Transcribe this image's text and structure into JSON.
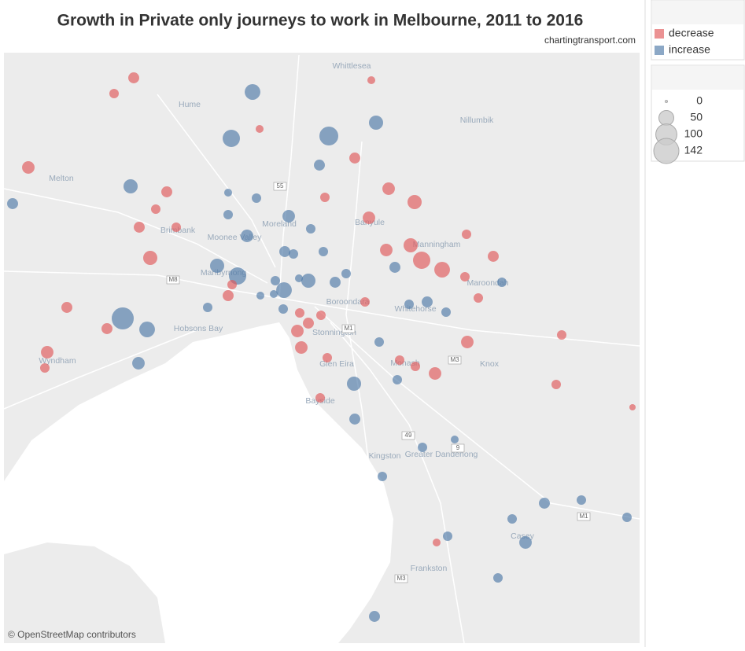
{
  "header": {
    "title": "Growth in Private only journeys to work in Melbourne, 2011 to 2016",
    "subtitle": "chartingtransport.com"
  },
  "legend": {
    "colors": [
      {
        "label": "decrease",
        "color": "#e15759"
      },
      {
        "label": "increase",
        "color": "#4e79a7"
      }
    ],
    "sizes": [
      0,
      50,
      100,
      142
    ]
  },
  "map": {
    "places": [
      "Whittlesea",
      "Hume",
      "Nillumbik",
      "Melton",
      "Moreland",
      "Banyule",
      "Brimbank",
      "Moonee Valley",
      "Manningham",
      "Maribyrnong",
      "Maroondah",
      "Boroondara",
      "Whitehorse",
      "Hobsons Bay",
      "Stonnington",
      "Glen Eira",
      "Wyndham",
      "Monash",
      "Knox",
      "Bayside",
      "Kingston",
      "Greater Dandenong",
      "Casey",
      "Frankston"
    ],
    "roads": [
      "55",
      "M8",
      "M1",
      "M3",
      "49",
      "9",
      "M3",
      "M1"
    ],
    "attribution": "© OpenStreetMap contributors"
  },
  "bubbles": {
    "values": [
      55,
      67,
      80,
      45,
      45,
      27,
      27,
      35,
      20,
      35,
      45,
      67,
      55,
      45,
      20,
      20,
      27,
      27,
      20,
      20,
      20,
      109,
      55,
      35,
      20,
      45,
      27,
      27,
      27,
      20,
      20,
      20,
      20,
      20,
      20,
      20,
      14,
      20,
      27,
      20,
      20,
      35,
      20,
      20,
      27,
      20,
      14,
      20,
      14,
      14,
      14,
      -27,
      -20,
      -35,
      -27,
      -45,
      -27,
      -20,
      -20,
      -27,
      -27,
      -35,
      -20,
      -27,
      -35,
      -45,
      -35,
      -20,
      -67,
      -45,
      -55,
      -35,
      -20,
      -27,
      -20,
      -20,
      -35,
      -35,
      -20,
      -20,
      -9,
      -27,
      -20,
      -35,
      -35,
      -27,
      -20,
      -20,
      -20,
      -20,
      -20,
      -20,
      -20,
      -14,
      -14,
      -14
    ]
  }
}
